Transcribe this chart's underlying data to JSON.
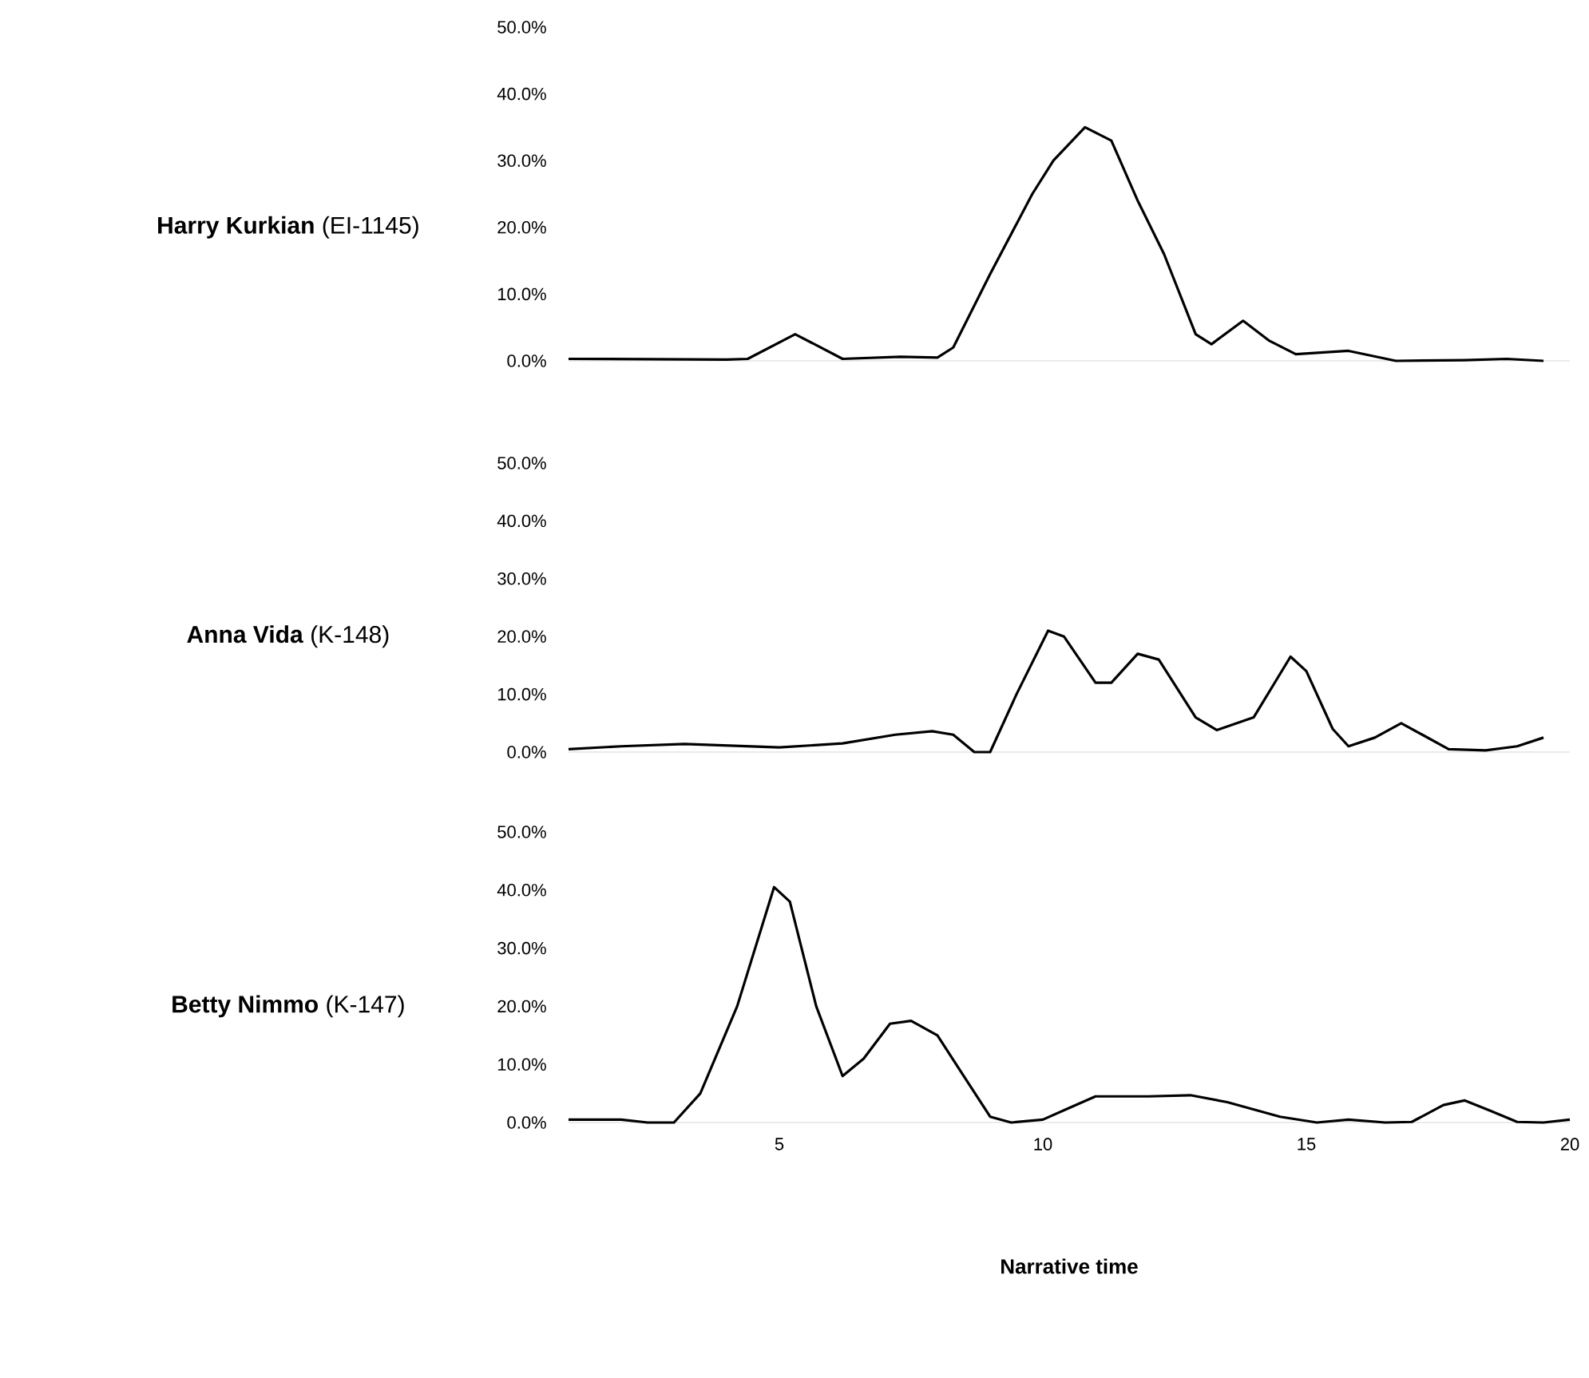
{
  "chart_data": [
    {
      "type": "line",
      "ylabel": "**Harry Kurkian** (EI-1145)",
      "xlim": [
        1,
        20
      ],
      "ylim": [
        0,
        50
      ],
      "xticks": [
        5,
        10,
        15,
        20
      ],
      "tick_labels": "y",
      "yticks": [
        {
          "value": 0,
          "label": "0.0%"
        },
        {
          "value": 10,
          "label": "10.0%"
        },
        {
          "value": 20,
          "label": "20.0%"
        },
        {
          "value": 30,
          "label": "30.0%"
        },
        {
          "value": 40,
          "label": "40.0%"
        },
        {
          "value": 50,
          "label": "50.0%"
        }
      ],
      "x": [
        1,
        4,
        4.4,
        5.3,
        6.2,
        7.3,
        8,
        8.3,
        9,
        9.8,
        10.2,
        10.8,
        11.3,
        11.8,
        12.3,
        12.9,
        13.2,
        13.8,
        14.3,
        14.8,
        15.8,
        16.7,
        18,
        18.8,
        19.5
      ],
      "series": [
        {
          "color": "#000000",
          "values": [
            0.3,
            0.2,
            0.3,
            4,
            0.3,
            0.6,
            0.5,
            2,
            13,
            25,
            30,
            35,
            33,
            24,
            16,
            4,
            2.5,
            6,
            3,
            1,
            1.5,
            0,
            0.1,
            0.3,
            0
          ]
        }
      ]
    },
    {
      "type": "line",
      "ylabel": "**Anna Vida** (K-148)",
      "xlim": [
        1,
        20
      ],
      "ylim": [
        0,
        50
      ],
      "xticks": [
        5,
        10,
        15,
        20
      ],
      "tick_labels": "y",
      "yticks": [
        {
          "value": 0,
          "label": "0.0%"
        },
        {
          "value": 10,
          "label": "10.0%"
        },
        {
          "value": 20,
          "label": "20.0%"
        },
        {
          "value": 30,
          "label": "30.0%"
        },
        {
          "value": 40,
          "label": "40.0%"
        },
        {
          "value": 50,
          "label": "50.0%"
        }
      ],
      "x": [
        1,
        2,
        3.2,
        5,
        6.2,
        7.2,
        7.9,
        8.3,
        8.7,
        9,
        9.5,
        10.1,
        10.4,
        11,
        11.3,
        11.8,
        12.2,
        12.9,
        13.3,
        14,
        14.7,
        15,
        15.5,
        15.8,
        16.3,
        16.8,
        17.2,
        17.7,
        18.4,
        19,
        19.5
      ],
      "series": [
        {
          "color": "#000000",
          "values": [
            0.5,
            1,
            1.4,
            0.8,
            1.5,
            3,
            3.6,
            3,
            0,
            0,
            10,
            21,
            20,
            12,
            12,
            17,
            16,
            6,
            3.8,
            6,
            16.5,
            14,
            4,
            1,
            2.5,
            5,
            3,
            0.5,
            0.3,
            1,
            2.5
          ]
        }
      ]
    },
    {
      "type": "line",
      "ylabel": "**Betty Nimmo** (K-147)",
      "xlabel": "Narrative time",
      "xlim": [
        1,
        20
      ],
      "ylim": [
        0,
        50
      ],
      "xticks": [
        5,
        10,
        15,
        20
      ],
      "yticks": [
        {
          "value": 0,
          "label": "0.0%"
        },
        {
          "value": 10,
          "label": "10.0%"
        },
        {
          "value": 20,
          "label": "20.0%"
        },
        {
          "value": 30,
          "label": "30.0%"
        },
        {
          "value": 40,
          "label": "40.0%"
        },
        {
          "value": 50,
          "label": "50.0%"
        }
      ],
      "x": [
        1,
        2,
        2.5,
        3,
        3.5,
        4.2,
        4.9,
        5.2,
        5.7,
        6.2,
        6.6,
        7.1,
        7.5,
        8,
        8.5,
        9,
        9.4,
        10,
        10.5,
        11,
        12,
        12.8,
        13.5,
        14.5,
        15.2,
        15.8,
        16.5,
        17,
        17.6,
        18,
        18.5,
        19,
        19.5,
        20
      ],
      "series": [
        {
          "color": "#000000",
          "values": [
            0.5,
            0.5,
            0,
            0,
            5,
            20,
            40.5,
            38,
            20,
            8,
            11,
            17,
            17.5,
            15,
            8,
            1,
            0,
            0.5,
            2.5,
            4.5,
            4.5,
            4.7,
            3.5,
            1,
            0,
            0.5,
            0,
            0.1,
            3,
            3.8,
            2,
            0.1,
            0,
            0.5
          ]
        }
      ]
    }
  ]
}
